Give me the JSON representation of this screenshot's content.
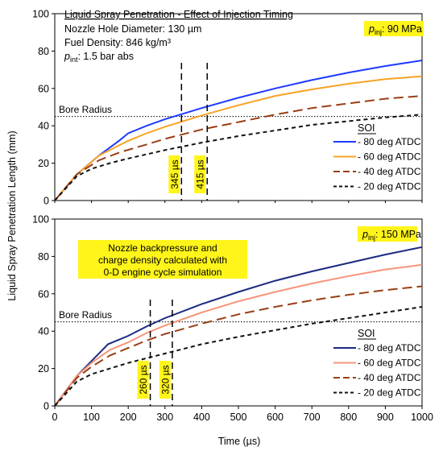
{
  "figure": {
    "ylabel": "Liquid Spray Penetration Length (mm)",
    "xlabel": "Time (µs)"
  },
  "chart_data": [
    {
      "type": "line",
      "title": "Liquid Spray Penetration - Effect of Injection Timing",
      "info_lines": [
        "Nozzle Hole Diameter: 130 µm",
        "Fuel Density: 846 kg/m³"
      ],
      "pint_label": "p",
      "pint_sub": "int",
      "pint_value": ": 1.5 bar abs",
      "pinj_label": "p",
      "pinj_sub": "inj",
      "pinj_value": ": 90 MPa",
      "xlim": [
        0,
        1000
      ],
      "ylim": [
        0,
        100
      ],
      "yticks": [
        0,
        20,
        40,
        60,
        80,
        100
      ],
      "xticks": [],
      "bore_radius": 45,
      "bore_label": "Bore Radius",
      "legend_title": "SOI",
      "series": [
        {
          "name": "- 80 deg ATDC",
          "color": "#1f3bff",
          "dash": "",
          "x": [
            0,
            60,
            120,
            175,
            200,
            250,
            300,
            400,
            500,
            600,
            700,
            800,
            900,
            1000
          ],
          "y": [
            0,
            14,
            24,
            32,
            36,
            40,
            43.5,
            49.5,
            55,
            60,
            64.5,
            68.5,
            72,
            75
          ]
        },
        {
          "name": "- 60 deg ATDC",
          "color": "#f7a325",
          "dash": "",
          "x": [
            0,
            60,
            120,
            180,
            200,
            250,
            300,
            400,
            500,
            600,
            700,
            800,
            900,
            1000
          ],
          "y": [
            0,
            14,
            24,
            30,
            32,
            36,
            39.5,
            45.5,
            51,
            56,
            59.5,
            62.5,
            65,
            66.5
          ]
        },
        {
          "name": "- 40 deg ATDC",
          "color": "#9a3e16",
          "dash": "12,6",
          "x": [
            0,
            60,
            120,
            180,
            250,
            300,
            400,
            500,
            600,
            700,
            800,
            900,
            1000
          ],
          "y": [
            0,
            14,
            21.5,
            26,
            30,
            33,
            38,
            42,
            46,
            49.5,
            52,
            54.5,
            56
          ]
        },
        {
          "name": "- 20 deg ATDC",
          "color": "#111111",
          "dash": "5,4",
          "x": [
            0,
            60,
            100,
            150,
            200,
            300,
            400,
            500,
            600,
            700,
            800,
            900,
            1000
          ],
          "y": [
            0,
            13,
            17,
            20,
            22.5,
            27,
            31,
            34.5,
            37.5,
            40.5,
            42.5,
            44.5,
            46
          ]
        }
      ],
      "markers": [
        {
          "x": 345,
          "label": "345 µs"
        },
        {
          "x": 415,
          "label": "415 µs"
        }
      ]
    },
    {
      "type": "line",
      "pinj_label": "p",
      "pinj_sub": "inj",
      "pinj_value": ": 150 MPa",
      "note_lines": [
        "Nozzle backpressure and",
        "charge density calculated with",
        "0-D engine cycle simulation"
      ],
      "xlim": [
        0,
        1000
      ],
      "ylim": [
        0,
        100
      ],
      "yticks": [
        0,
        20,
        40,
        60,
        80,
        100
      ],
      "xticks": [
        0,
        100,
        200,
        300,
        400,
        500,
        600,
        700,
        800,
        900,
        1000
      ],
      "bore_radius": 45,
      "bore_label": "Bore Radius",
      "legend_title": "SOI",
      "series": [
        {
          "name": "- 80 deg ATDC",
          "color": "#1b2a80",
          "dash": "",
          "x": [
            0,
            60,
            100,
            145,
            200,
            250,
            300,
            400,
            500,
            600,
            700,
            800,
            900,
            1000
          ],
          "y": [
            0,
            16,
            24,
            33,
            37.5,
            42.5,
            47,
            54.5,
            61,
            67,
            72,
            76.5,
            81,
            85
          ]
        },
        {
          "name": "- 60 deg ATDC",
          "color": "#f6957a",
          "dash": "",
          "x": [
            0,
            60,
            100,
            150,
            200,
            250,
            300,
            400,
            500,
            600,
            700,
            800,
            900,
            1000
          ],
          "y": [
            0,
            16,
            23,
            30,
            34,
            39,
            43,
            50,
            56,
            61,
            65.5,
            69.5,
            73,
            75.5
          ]
        },
        {
          "name": "- 40 deg ATDC",
          "color": "#9a3e16",
          "dash": "12,6",
          "x": [
            0,
            60,
            100,
            150,
            200,
            250,
            300,
            400,
            500,
            600,
            700,
            800,
            900,
            1000
          ],
          "y": [
            0,
            15,
            21,
            27,
            31,
            35,
            38.5,
            44,
            49,
            53,
            56.5,
            59.5,
            62,
            64
          ]
        },
        {
          "name": "- 20 deg ATDC",
          "color": "#111111",
          "dash": "5,4",
          "x": [
            0,
            60,
            100,
            150,
            200,
            300,
            400,
            500,
            600,
            700,
            800,
            900,
            1000
          ],
          "y": [
            0,
            13,
            17,
            20,
            23,
            28,
            33,
            37,
            40.5,
            44,
            47,
            50,
            53
          ]
        }
      ],
      "markers": [
        {
          "x": 260,
          "label": "260 µs"
        },
        {
          "x": 320,
          "label": "320 µs"
        }
      ]
    }
  ]
}
